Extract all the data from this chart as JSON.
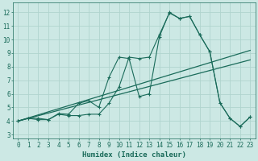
{
  "title": "",
  "xlabel": "Humidex (Indice chaleur)",
  "ylabel": "",
  "bg_color": "#cce8e4",
  "grid_color": "#b0d4ce",
  "line_color": "#1a6b5a",
  "x_ticks": [
    0,
    1,
    2,
    3,
    4,
    5,
    6,
    7,
    8,
    9,
    10,
    11,
    12,
    13,
    14,
    15,
    16,
    17,
    18,
    19,
    20,
    21,
    22,
    23
  ],
  "y_ticks": [
    3,
    4,
    5,
    6,
    7,
    8,
    9,
    10,
    11,
    12
  ],
  "xlim": [
    -0.5,
    23.5
  ],
  "ylim": [
    2.7,
    12.7
  ],
  "series1_x": [
    0,
    23
  ],
  "series1_y": [
    4.0,
    9.2
  ],
  "series2_x": [
    0,
    23
  ],
  "series2_y": [
    4.0,
    8.5
  ],
  "series3_x": [
    0,
    1,
    2,
    3,
    4,
    5,
    6,
    7,
    8,
    9,
    10,
    11,
    12,
    13,
    14,
    15,
    16,
    17,
    18,
    19,
    20,
    21,
    22,
    23
  ],
  "series3_y": [
    4.0,
    4.2,
    4.1,
    4.1,
    4.5,
    4.4,
    4.4,
    4.5,
    4.5,
    5.3,
    6.5,
    8.7,
    8.6,
    8.7,
    10.35,
    11.95,
    11.55,
    11.7,
    10.35,
    9.1,
    5.35,
    4.2,
    3.6,
    4.3
  ],
  "series4_x": [
    0,
    1,
    2,
    3,
    4,
    5,
    6,
    7,
    8,
    9,
    10,
    11,
    12,
    13,
    14,
    15,
    16,
    17,
    18,
    19,
    20,
    21,
    22,
    23
  ],
  "series4_y": [
    4.0,
    4.2,
    4.2,
    4.1,
    4.55,
    4.5,
    5.3,
    5.5,
    5.0,
    7.2,
    8.7,
    8.6,
    5.8,
    6.0,
    10.2,
    12.0,
    11.55,
    11.7,
    10.35,
    9.1,
    5.35,
    4.2,
    3.6,
    4.3
  ]
}
